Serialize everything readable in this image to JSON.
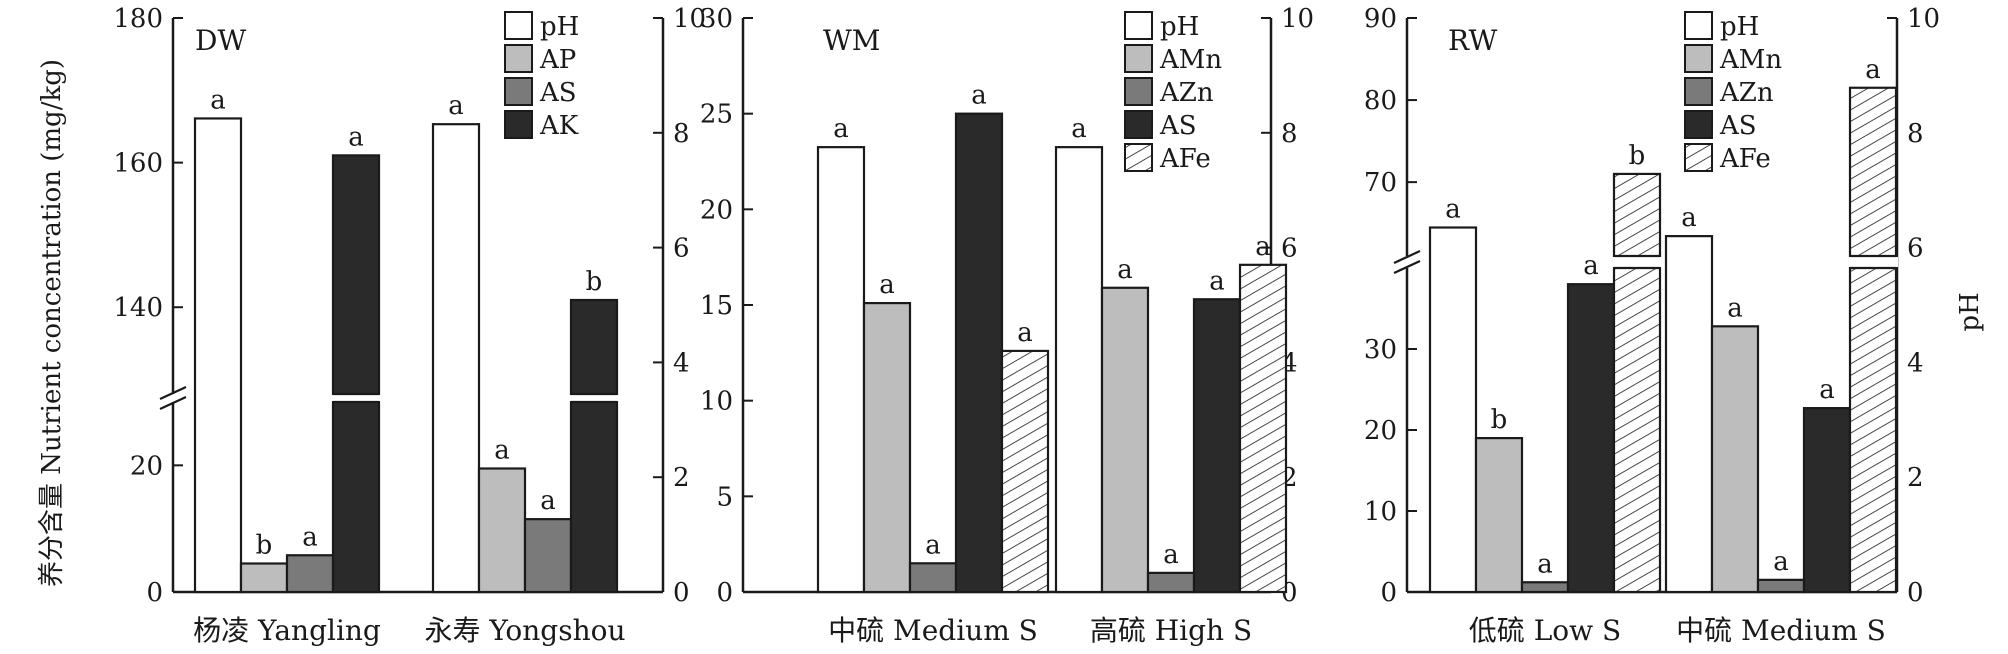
{
  "figure": {
    "left_axis_label": "养分含量 Nutrient concentration (mg/kg)",
    "right_axis_label": "pH"
  },
  "chart_data": [
    {
      "type": "bar",
      "panel_label": "DW",
      "categories": [
        "杨凌 Yangling",
        "永寿 Yongshou"
      ],
      "left_axis": {
        "broken": true,
        "lower_range": [
          0,
          30
        ],
        "upper_range": [
          128,
          180
        ],
        "lower_ticks": [
          0,
          20
        ],
        "upper_ticks": [
          140,
          160,
          180
        ]
      },
      "right_axis": {
        "range": [
          0,
          10
        ],
        "ticks": [
          0,
          2,
          4,
          6,
          8,
          10
        ]
      },
      "series": [
        {
          "name": "pH",
          "axis": "right",
          "fill": "white",
          "values": [
            8.25,
            8.15
          ],
          "labels": [
            "a",
            "a"
          ]
        },
        {
          "name": "AP",
          "axis": "left",
          "fill": "light",
          "values": [
            4.5,
            19.5
          ],
          "labels": [
            "b",
            "a"
          ]
        },
        {
          "name": "AS",
          "axis": "left",
          "fill": "mid",
          "values": [
            5.8,
            11.5
          ],
          "labels": [
            "a",
            "a"
          ]
        },
        {
          "name": "AK",
          "axis": "left",
          "fill": "dark",
          "values": [
            161,
            141
          ],
          "labels": [
            "a",
            "b"
          ]
        }
      ]
    },
    {
      "type": "bar",
      "panel_label": "WM",
      "categories": [
        "中硫 Medium S",
        "高硫 High S"
      ],
      "left_axis": {
        "broken": false,
        "range": [
          0,
          30
        ],
        "ticks": [
          0,
          5,
          10,
          15,
          20,
          25,
          30
        ]
      },
      "right_axis": {
        "range": [
          0,
          10
        ],
        "ticks": [
          0,
          2,
          4,
          6,
          8,
          10
        ]
      },
      "series": [
        {
          "name": "pH",
          "axis": "right",
          "fill": "white",
          "values": [
            7.75,
            7.75
          ],
          "labels": [
            "a",
            "a"
          ]
        },
        {
          "name": "AMn",
          "axis": "left",
          "fill": "light",
          "values": [
            15.1,
            15.9
          ],
          "labels": [
            "a",
            "a"
          ]
        },
        {
          "name": "AZn",
          "axis": "left",
          "fill": "mid",
          "values": [
            1.5,
            1.0
          ],
          "labels": [
            "a",
            "a"
          ]
        },
        {
          "name": "AS",
          "axis": "left",
          "fill": "dark",
          "values": [
            25.0,
            15.3
          ],
          "labels": [
            "a",
            "a"
          ]
        },
        {
          "name": "AFe",
          "axis": "left",
          "fill": "hatch",
          "values": [
            12.6,
            17.1
          ],
          "labels": [
            "a",
            "a"
          ]
        }
      ]
    },
    {
      "type": "bar",
      "panel_label": "RW",
      "categories": [
        "低硫 Low S",
        "中硫 Medium S"
      ],
      "left_axis": {
        "broken": true,
        "lower_range": [
          0,
          40
        ],
        "upper_range": [
          61,
          90
        ],
        "lower_ticks": [
          0,
          10,
          20,
          30
        ],
        "upper_ticks": [
          70,
          80,
          90
        ]
      },
      "right_axis": {
        "range": [
          0,
          10
        ],
        "ticks": [
          0,
          2,
          4,
          6,
          8,
          10
        ]
      },
      "series": [
        {
          "name": "pH",
          "axis": "right",
          "fill": "white",
          "values": [
            6.35,
            6.2
          ],
          "labels": [
            "a",
            "a"
          ]
        },
        {
          "name": "AMn",
          "axis": "left",
          "fill": "light",
          "values": [
            19.0,
            32.8
          ],
          "labels": [
            "b",
            "a"
          ]
        },
        {
          "name": "AZn",
          "axis": "left",
          "fill": "mid",
          "values": [
            1.2,
            1.5
          ],
          "labels": [
            "a",
            "a"
          ]
        },
        {
          "name": "AS",
          "axis": "left",
          "fill": "dark",
          "values": [
            38.0,
            22.7
          ],
          "labels": [
            "a",
            "a"
          ]
        },
        {
          "name": "AFe",
          "axis": "left",
          "fill": "hatch",
          "values": [
            71,
            81.5
          ],
          "labels": [
            "b",
            "a"
          ]
        }
      ]
    }
  ]
}
